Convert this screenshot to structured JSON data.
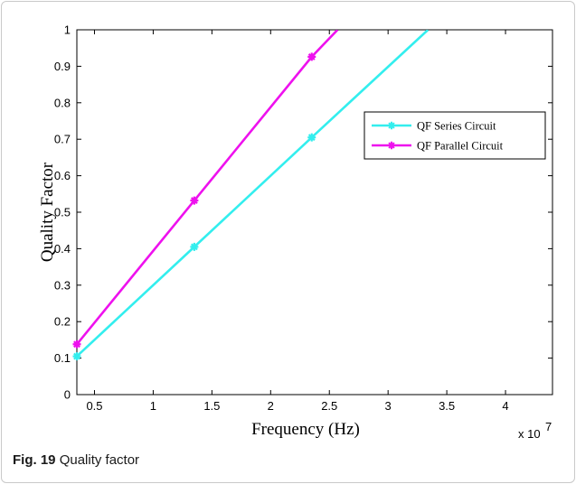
{
  "caption": {
    "label": "Fig. 19",
    "text": "Quality factor"
  },
  "chart_data": {
    "type": "line",
    "xlabel": "Frequency (Hz)",
    "ylabel": "Quality Factor",
    "x_multiplier_label": "x 10",
    "x_multiplier_exp": "7",
    "xlim": [
      0.35,
      4.4
    ],
    "ylim": [
      0,
      1
    ],
    "xticks": [
      0.5,
      1,
      1.5,
      2,
      2.5,
      3,
      3.5,
      4
    ],
    "xtick_labels": [
      "0.5",
      "1",
      "1.5",
      "2",
      "2.5",
      "3",
      "3.5",
      "4"
    ],
    "yticks": [
      0,
      0.1,
      0.2,
      0.3,
      0.4,
      0.5,
      0.6,
      0.7,
      0.8,
      0.9,
      1
    ],
    "ytick_labels": [
      "0",
      "0.1",
      "0.2",
      "0.3",
      "0.4",
      "0.5",
      "0.6",
      "0.7",
      "0.8",
      "0.9",
      "1"
    ],
    "grid": false,
    "legend_position": "top-right",
    "series": [
      {
        "name": "QF Series Circuit",
        "color": "#33eeee",
        "x": [
          0.35,
          1.35,
          2.35,
          3.34
        ],
        "y": [
          0.105,
          0.405,
          0.705,
          1.0
        ],
        "markers": [
          true,
          true,
          true,
          false
        ]
      },
      {
        "name": "QF Parallel Circuit",
        "color": "#ee11ee",
        "x": [
          0.35,
          1.35,
          2.35,
          2.57
        ],
        "y": [
          0.138,
          0.532,
          0.926,
          1.0
        ],
        "markers": [
          true,
          true,
          true,
          false
        ]
      }
    ]
  }
}
